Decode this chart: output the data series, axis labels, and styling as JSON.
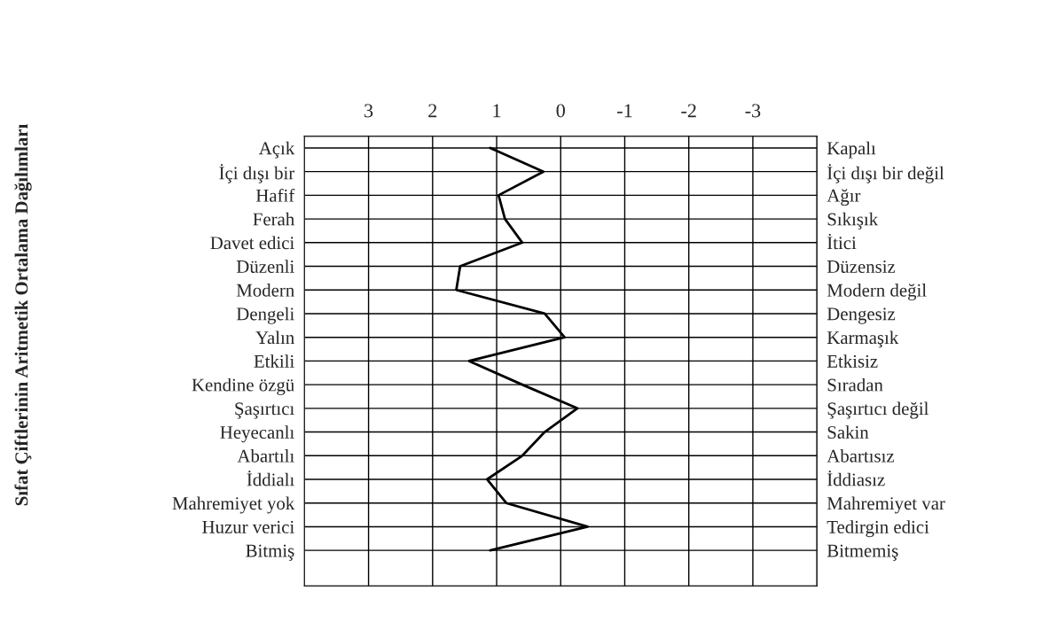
{
  "chart_data": {
    "type": "line",
    "orientation": "horizontal",
    "title": "Sıfat Çiftlerinin Aritmetik Ortalama Dağılımları",
    "categories": [
      "Açık",
      "İçi dışı bir",
      "Hafif",
      "Ferah",
      "Davet edici",
      "Düzenli",
      "Modern",
      "Dengeli",
      "Yalın",
      "Etkili",
      "Kendine özgü",
      "Şaşırtıcı",
      "Heyecanlı",
      "Abartılı",
      "İddialı",
      "Mahremiyet yok",
      "Huzur verici",
      "Bitmiş"
    ],
    "y2_categories": [
      "Kapalı",
      "İçi dışı bir değil",
      "Ağır",
      "Sıkışık",
      "İtici",
      "Düzensiz",
      "Modern değil",
      "Dengesiz",
      "Karmaşık",
      "Etkisiz",
      "Sıradan",
      "Şaşırtıcı değil",
      "Sakin",
      "Abartısız",
      "İddiasız",
      "Mahremiyet var",
      "Tedirgin edici",
      "Bitmemiş"
    ],
    "series": [
      {
        "color": "#000000",
        "values": [
          1.1,
          0.27,
          0.97,
          0.87,
          0.6,
          1.57,
          1.63,
          0.25,
          -0.06,
          1.43,
          0.6,
          -0.26,
          0.25,
          0.6,
          1.15,
          0.85,
          -0.42,
          1.1
        ]
      }
    ],
    "xlim": [
      4,
      -4
    ],
    "xticks": [
      3,
      2,
      1,
      0,
      -1,
      -2,
      -3
    ],
    "grid": true,
    "marker": "none",
    "line_style": "solid"
  }
}
